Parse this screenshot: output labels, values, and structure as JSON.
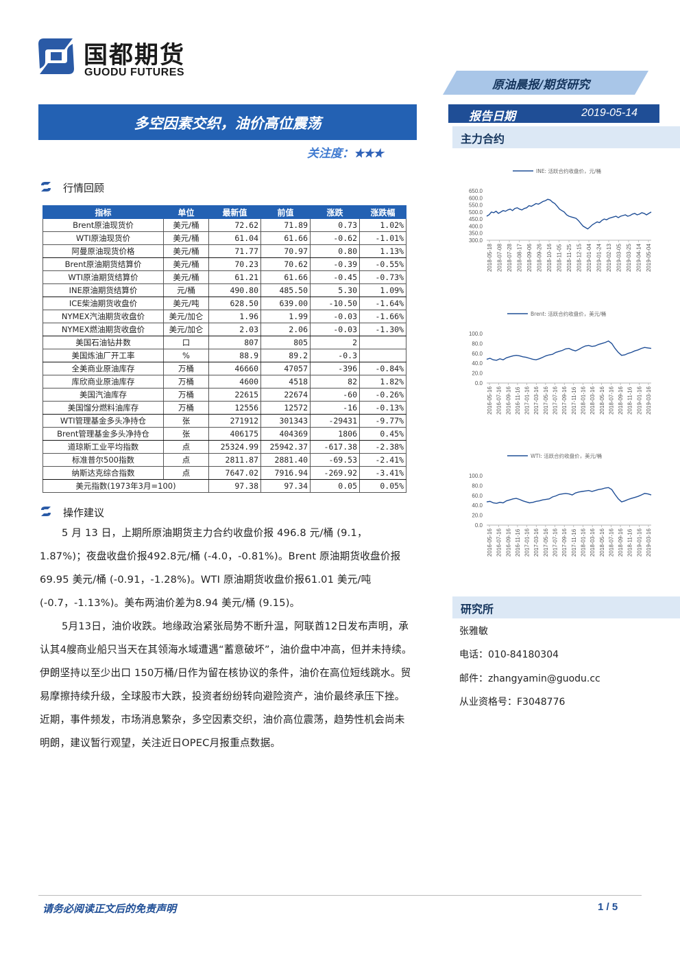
{
  "brand": {
    "name_cn": "国都期货",
    "name_en": "GUODU FUTURES"
  },
  "header": {
    "series": "原油晨报/期货研究",
    "date_label": "报告日期",
    "date_value": "2019-05-14",
    "main_contract_label": "主力合约"
  },
  "report": {
    "title": "多空因素交织，油价高位震荡",
    "attention_label": "关注度：",
    "attention_stars": "★★★"
  },
  "section_market": {
    "title": "行情回顾"
  },
  "table": {
    "headers": [
      "指标",
      "单位",
      "最新值",
      "前值",
      "涨跌",
      "涨跌幅"
    ],
    "rows": [
      [
        "Brent原油现货价",
        "美元/桶",
        "72.62",
        "71.89",
        "0.73",
        "1.02%"
      ],
      [
        "WTI原油现货价",
        "美元/桶",
        "61.04",
        "61.66",
        "-0.62",
        "-1.01%"
      ],
      [
        "阿曼原油现货价格",
        "美元/桶",
        "71.77",
        "70.97",
        "0.80",
        "1.13%"
      ],
      [
        "Brent原油期货结算价",
        "美元/桶",
        "70.23",
        "70.62",
        "-0.39",
        "-0.55%"
      ],
      [
        "WTI原油期货结算价",
        "美元/桶",
        "61.21",
        "61.66",
        "-0.45",
        "-0.73%"
      ],
      [
        "INE原油期货结算价",
        "元/桶",
        "490.80",
        "485.50",
        "5.30",
        "1.09%"
      ],
      [
        "ICE柴油期货收盘价",
        "美元/吨",
        "628.50",
        "639.00",
        "-10.50",
        "-1.64%"
      ],
      [
        "NYMEX汽油期货收盘价",
        "美元/加仑",
        "1.96",
        "1.99",
        "-0.03",
        "-1.66%"
      ],
      [
        "NYMEX燃油期货收盘价",
        "美元/加仑",
        "2.03",
        "2.06",
        "-0.03",
        "-1.30%"
      ],
      [
        "美国石油钻井数",
        "口",
        "807",
        "805",
        "2",
        ""
      ],
      [
        "美国炼油厂开工率",
        "%",
        "88.9",
        "89.2",
        "-0.3",
        ""
      ],
      [
        "全美商业原油库存",
        "万桶",
        "46660",
        "47057",
        "-396",
        "-0.84%"
      ],
      [
        "库欣商业原油库存",
        "万桶",
        "4600",
        "4518",
        "82",
        "1.82%"
      ],
      [
        "美国汽油库存",
        "万桶",
        "22615",
        "22674",
        "-60",
        "-0.26%"
      ],
      [
        "美国馏分燃料油库存",
        "万桶",
        "12556",
        "12572",
        "-16",
        "-0.13%"
      ],
      [
        "WTI管理基金多头净持仓",
        "张",
        "271912",
        "301343",
        "-29431",
        "-9.77%"
      ],
      [
        "Brent管理基金多头净持仓",
        "张",
        "406175",
        "404369",
        "1806",
        "0.45%"
      ],
      [
        "道琼斯工业平均指数",
        "点",
        "25324.99",
        "25942.37",
        "-617.38",
        "-2.38%"
      ],
      [
        "标准普尔500指数",
        "点",
        "2811.87",
        "2881.40",
        "-69.53",
        "-2.41%"
      ],
      [
        "纳斯达克综合指数",
        "点",
        "7647.02",
        "7916.94",
        "-269.92",
        "-3.41%"
      ]
    ],
    "last_row": {
      "label": "美元指数(1973年3月=100)",
      "latest": "97.38",
      "prev": "97.34",
      "change": "0.05",
      "pct": "0.05%"
    }
  },
  "section_advice": {
    "title": "操作建议"
  },
  "advice": {
    "p1": "5 月 13 日，上期所原油期货主力合约收盘价报 496.8 元/桶 (9.1，1.87%)；夜盘收盘价报492.8元/桶 (-4.0，-0.81%)。Brent 原油期货收盘价报69.95 美元/桶 (-0.91，-1.28%)。WTI 原油期货收盘价报61.01 美元/吨 (-0.7，-1.13%)。美布两油价差为8.94 美元/桶 (9.15)。",
    "p2": "5月13日，油价收跌。地缘政治紧张局势不断升温，阿联酋12日发布声明，承认其4艘商业船只当天在其领海水域遭遇“蓄意破坏”，油价盘中冲高，但并未持续。伊朗坚持以至少出口 150万桶/日作为留在核协议的条件，油价在高位短线跳水。贸易摩擦持续升级，全球股市大跌，投资者纷纷转向避险资产，油价最终承压下挫。近期，事件频发，市场消息繁杂，多空因素交织，油价高位震荡，趋势性机会尚未明朗，建议暂行观望，关注近日OPEC月报重点数据。"
  },
  "charts": [
    {
      "legend": "INE: 活跃合约收盘价，元/桶",
      "line_color": "#1f4e96",
      "chart_data": {
        "type": "line",
        "ylim": [
          300,
          650
        ],
        "y_ticks": [
          "650.0",
          "600.0",
          "550.0",
          "500.0",
          "450.0",
          "400.0",
          "350.0",
          "300.0"
        ],
        "x_ticks": [
          "2018-05-18",
          "2018-07-08",
          "2018-07-28",
          "2018-08-17",
          "2018-09-06",
          "2018-09-26",
          "2018-10-16",
          "2018-11-05",
          "2018-11-25",
          "2018-12-15",
          "2019-01-04",
          "2019-01-24",
          "2019-02-13",
          "2019-03-05",
          "2019-03-25",
          "2019-04-14",
          "2019-05-04"
        ],
        "series": [
          {
            "values": [
              470,
              480,
              500,
              495,
              505,
              490,
              500,
              510,
              505,
              515,
              520,
              510,
              525,
              530,
              520,
              515,
              525,
              530,
              545,
              540,
              550,
              560,
              555,
              565,
              575,
              580,
              590,
              585,
              570,
              560,
              540,
              520,
              510,
              500,
              480,
              470,
              465,
              460,
              455,
              440,
              420,
              400,
              390,
              380,
              395,
              410,
              420,
              430,
              425,
              440,
              450,
              445,
              455,
              460,
              465,
              470,
              460,
              470,
              475,
              480,
              470,
              475,
              485,
              490,
              480,
              485,
              495,
              490,
              480,
              490,
              500
            ]
          }
        ]
      }
    },
    {
      "legend": "Brent: 活跃合约收盘价，美元/桶",
      "line_color": "#1f4e96",
      "chart_data": {
        "type": "line",
        "ylim": [
          0,
          100
        ],
        "y_ticks": [
          "100.0",
          "80.0",
          "60.0",
          "40.0",
          "20.0",
          "0.0"
        ],
        "x_ticks": [
          "2016-05-16",
          "2016-07-16",
          "2016-09-16",
          "2016-11-16",
          "2017-01-16",
          "2017-03-16",
          "2017-05-16",
          "2017-07-16",
          "2017-09-16",
          "2017-11-16",
          "2018-01-16",
          "2018-03-16",
          "2018-05-16",
          "2018-07-16",
          "2018-09-16",
          "2018-11-16",
          "2019-01-16",
          "2019-03-16"
        ],
        "series": [
          {
            "values": [
              48,
              50,
              47,
              46,
              49,
              47,
              51,
              53,
              55,
              56,
              55,
              53,
              52,
              50,
              48,
              47,
              49,
              52,
              55,
              57,
              58,
              62,
              64,
              66,
              69,
              70,
              67,
              65,
              68,
              72,
              75,
              76,
              74,
              75,
              78,
              80,
              82,
              85,
              80,
              70,
              62,
              56,
              57,
              60,
              62,
              65,
              67,
              70,
              72,
              71,
              70
            ]
          }
        ]
      }
    },
    {
      "legend": "WTI: 活跃合约收盘价，美元/桶",
      "line_color": "#1f4e96",
      "chart_data": {
        "type": "line",
        "ylim": [
          0,
          100
        ],
        "y_ticks": [
          "100.0",
          "80.0",
          "60.0",
          "40.0",
          "20.0",
          "0.0"
        ],
        "x_ticks": [
          "2016-05-16",
          "2016-07-16",
          "2016-09-16",
          "2016-11-16",
          "2017-01-16",
          "2017-03-16",
          "2017-05-16",
          "2017-07-16",
          "2017-09-16",
          "2017-11-16",
          "2018-01-16",
          "2018-03-16",
          "2018-05-16",
          "2018-07-16",
          "2018-09-16",
          "2018-11-16",
          "2019-01-16",
          "2019-03-16"
        ],
        "series": [
          {
            "values": [
              47,
              48,
              45,
              44,
              46,
              45,
              49,
              51,
              53,
              54,
              52,
              49,
              47,
              45,
              46,
              48,
              49,
              51,
              52,
              53,
              57,
              59,
              62,
              63,
              64,
              63,
              61,
              65,
              67,
              68,
              69,
              70,
              68,
              70,
              72,
              73,
              75,
              76,
              72,
              62,
              53,
              47,
              49,
              52,
              54,
              56,
              58,
              61,
              64,
              63,
              61
            ]
          }
        ]
      }
    }
  ],
  "research": {
    "head": "研究所",
    "name": "张雅敏",
    "phone": "电话：010-84180304",
    "email": "邮件：zhangyamin@guodu.cc",
    "license": "从业资格号：F3048776"
  },
  "footer": {
    "disclaimer": "请务必阅读正文后的免责声明",
    "page": "1 / 5"
  }
}
